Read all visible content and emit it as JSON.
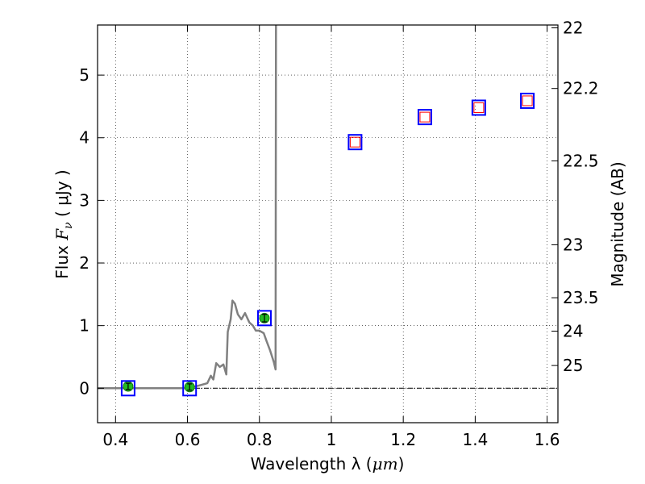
{
  "chart_data": {
    "type": "scatter",
    "xlabel": "Wavelength  λ (μm)",
    "ylabel": "Flux  Fν  ( μJy )",
    "ylabel_parts": {
      "prefix": "Flux  ",
      "symbol": "F",
      "subscript": "ν",
      "suffix": "  ( μJy )"
    },
    "xlabel_parts": {
      "prefix": "Wavelength  λ (",
      "unit": "μm",
      "suffix": ")"
    },
    "y2label": "Magnitude (AB)",
    "xlim": [
      0.35,
      1.63
    ],
    "ylim": [
      -0.55,
      5.8
    ],
    "grid": true,
    "x_ticks": [
      0.4,
      0.6,
      0.8,
      1.0,
      1.2,
      1.4,
      1.6
    ],
    "x_tick_labels": [
      "0.4",
      "0.6",
      "0.8",
      "1",
      "1.2",
      "1.4",
      "1.6"
    ],
    "y_ticks": [
      0,
      1,
      2,
      3,
      4,
      5
    ],
    "y_tick_labels": [
      "0",
      "1",
      "2",
      "3",
      "4",
      "5"
    ],
    "mag_ticks": [
      {
        "label": "22",
        "value": 22
      },
      {
        "label": "22.2",
        "value": 22.2
      },
      {
        "label": "22.5",
        "value": 22.5
      },
      {
        "label": "23",
        "value": 23
      },
      {
        "label": "23.5",
        "value": 23.5
      },
      {
        "label": "24",
        "value": 24
      },
      {
        "label": "25",
        "value": 25
      }
    ],
    "colors": {
      "model": "#808080",
      "observed_fill": "#22bb22",
      "model_box": "#0000ff",
      "upper_limit": "#ff0000",
      "zero_line": "#000000"
    },
    "series": [
      {
        "name": "model_sed",
        "style": "line",
        "points": [
          [
            0.35,
            0.0
          ],
          [
            0.45,
            0.0
          ],
          [
            0.55,
            0.0
          ],
          [
            0.6,
            0.0
          ],
          [
            0.63,
            0.04
          ],
          [
            0.655,
            0.08
          ],
          [
            0.665,
            0.2
          ],
          [
            0.672,
            0.14
          ],
          [
            0.68,
            0.4
          ],
          [
            0.69,
            0.34
          ],
          [
            0.7,
            0.38
          ],
          [
            0.708,
            0.22
          ],
          [
            0.712,
            0.9
          ],
          [
            0.72,
            1.1
          ],
          [
            0.725,
            1.4
          ],
          [
            0.732,
            1.35
          ],
          [
            0.74,
            1.18
          ],
          [
            0.75,
            1.1
          ],
          [
            0.76,
            1.2
          ],
          [
            0.772,
            1.05
          ],
          [
            0.782,
            1.0
          ],
          [
            0.79,
            0.92
          ],
          [
            0.8,
            0.92
          ],
          [
            0.812,
            0.88
          ],
          [
            0.82,
            0.75
          ],
          [
            0.83,
            0.6
          ],
          [
            0.84,
            0.42
          ],
          [
            0.845,
            0.3
          ],
          [
            0.846,
            5.8
          ]
        ]
      },
      {
        "name": "observed",
        "style": "points",
        "points": [
          {
            "x": 0.435,
            "y": 0.03,
            "err": 0.05
          },
          {
            "x": 0.606,
            "y": 0.02,
            "err": 0.05
          },
          {
            "x": 0.814,
            "y": 1.12,
            "err": 0.06
          }
        ]
      },
      {
        "name": "model_photometry",
        "style": "boxes",
        "points": [
          {
            "x": 0.435,
            "y": 0.0
          },
          {
            "x": 0.606,
            "y": 0.0
          },
          {
            "x": 0.814,
            "y": 1.12
          },
          {
            "x": 1.066,
            "y": 3.93
          },
          {
            "x": 1.26,
            "y": 4.33
          },
          {
            "x": 1.41,
            "y": 4.48
          },
          {
            "x": 1.545,
            "y": 4.59
          }
        ]
      },
      {
        "name": "upper_limits",
        "style": "open_squares",
        "points": [
          {
            "x": 1.066,
            "y": 3.93
          },
          {
            "x": 1.26,
            "y": 4.33
          },
          {
            "x": 1.41,
            "y": 4.48
          },
          {
            "x": 1.545,
            "y": 4.59
          }
        ]
      }
    ]
  }
}
